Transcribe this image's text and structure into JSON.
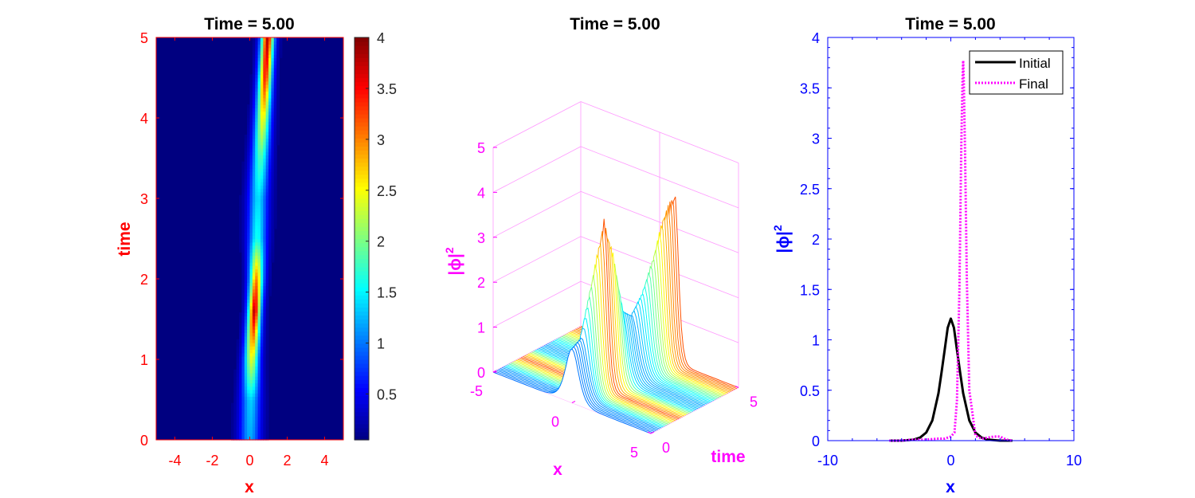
{
  "chart_data": [
    {
      "type": "heatmap",
      "title": "Time = 5.00",
      "xlabel": "x",
      "ylabel": "time",
      "xlim": [
        -5,
        5
      ],
      "ylim": [
        0,
        5
      ],
      "xticks": [
        "-4",
        "-2",
        "0",
        "2",
        "4"
      ],
      "yticks": [
        "0",
        "1",
        "2",
        "3",
        "4",
        "5"
      ],
      "colorbar": {
        "range": [
          0.05,
          4
        ],
        "ticks": [
          "0.5",
          "1",
          "1.5",
          "2",
          "2.5",
          "3",
          "3.5",
          "4"
        ]
      },
      "colormap": "jet",
      "axis_color": "#ff0000",
      "ridge_center": [
        {
          "time": 0,
          "x": 0.0
        },
        {
          "time": 1,
          "x": 0.1
        },
        {
          "time": 2,
          "x": 0.35
        },
        {
          "time": 3,
          "x": 0.45
        },
        {
          "time": 4,
          "x": 0.7
        },
        {
          "time": 5,
          "x": 0.95
        }
      ],
      "ridge_peak": [
        {
          "time": 0,
          "value": 1.2
        },
        {
          "time": 0.5,
          "value": 1.35
        },
        {
          "time": 1.0,
          "value": 2.4
        },
        {
          "time": 1.6,
          "value": 3.8
        },
        {
          "time": 2.0,
          "value": 3.0
        },
        {
          "time": 2.5,
          "value": 1.6
        },
        {
          "time": 3.0,
          "value": 1.4
        },
        {
          "time": 3.5,
          "value": 1.8
        },
        {
          "time": 4.0,
          "value": 2.5
        },
        {
          "time": 4.5,
          "value": 3.4
        },
        {
          "time": 5.0,
          "value": 3.8
        }
      ]
    },
    {
      "type": "surface",
      "title": "Time = 5.00",
      "xlabel": "x",
      "ylabel": "time",
      "zlabel": "|ϕ|²",
      "zlabel_text": "|ϕ|",
      "zlabel_sup": "2",
      "xlim": [
        -5,
        5
      ],
      "ylim": [
        0,
        5
      ],
      "zlim": [
        0,
        5
      ],
      "xticks": [
        "-5",
        "0",
        "5"
      ],
      "yticks": [
        "0",
        "5"
      ],
      "zticks": [
        "0",
        "1",
        "2",
        "3",
        "4",
        "5"
      ],
      "axis_color": "#ff00ff"
    },
    {
      "type": "line",
      "title": "Time = 5.00",
      "xlabel": "x",
      "ylabel": "|ϕ|²",
      "ylabel_text": "|ϕ|",
      "ylabel_sup": "2",
      "xlim": [
        -10,
        10
      ],
      "ylim": [
        0,
        4
      ],
      "xticks": [
        "-10",
        "0",
        "10"
      ],
      "yticks": [
        "0",
        "0.5",
        "1",
        "1.5",
        "2",
        "2.5",
        "3",
        "3.5",
        "4"
      ],
      "axis_color": "#0000ff",
      "legend_position": "top-right",
      "series": [
        {
          "name": "Initial",
          "color": "#000000",
          "style": "solid",
          "x": [
            -5,
            -4,
            -3,
            -2.5,
            -2,
            -1.5,
            -1,
            -0.75,
            -0.5,
            -0.25,
            0,
            0.25,
            0.5,
            0.75,
            1,
            1.5,
            2,
            2.5,
            3,
            4,
            5
          ],
          "y": [
            0,
            0,
            0.01,
            0.03,
            0.08,
            0.2,
            0.47,
            0.68,
            0.9,
            1.12,
            1.21,
            1.12,
            0.9,
            0.68,
            0.47,
            0.2,
            0.08,
            0.03,
            0.01,
            0,
            0
          ]
        },
        {
          "name": "Final",
          "color": "#ff00ff",
          "style": "dotted",
          "x": [
            -5,
            -4,
            -3,
            -2,
            -1,
            -0.5,
            0,
            0.3,
            0.5,
            0.7,
            0.85,
            0.95,
            1.0,
            1.05,
            1.15,
            1.3,
            1.5,
            2,
            2.5,
            3,
            3.5,
            4,
            4.5,
            5
          ],
          "y": [
            0,
            0,
            0.01,
            0.01,
            0.02,
            0.02,
            0.04,
            0.08,
            0.4,
            1.5,
            2.9,
            3.6,
            3.77,
            3.6,
            2.9,
            1.6,
            0.5,
            0.05,
            0.02,
            0.03,
            0.04,
            0.04,
            0.01,
            0
          ]
        }
      ]
    }
  ]
}
